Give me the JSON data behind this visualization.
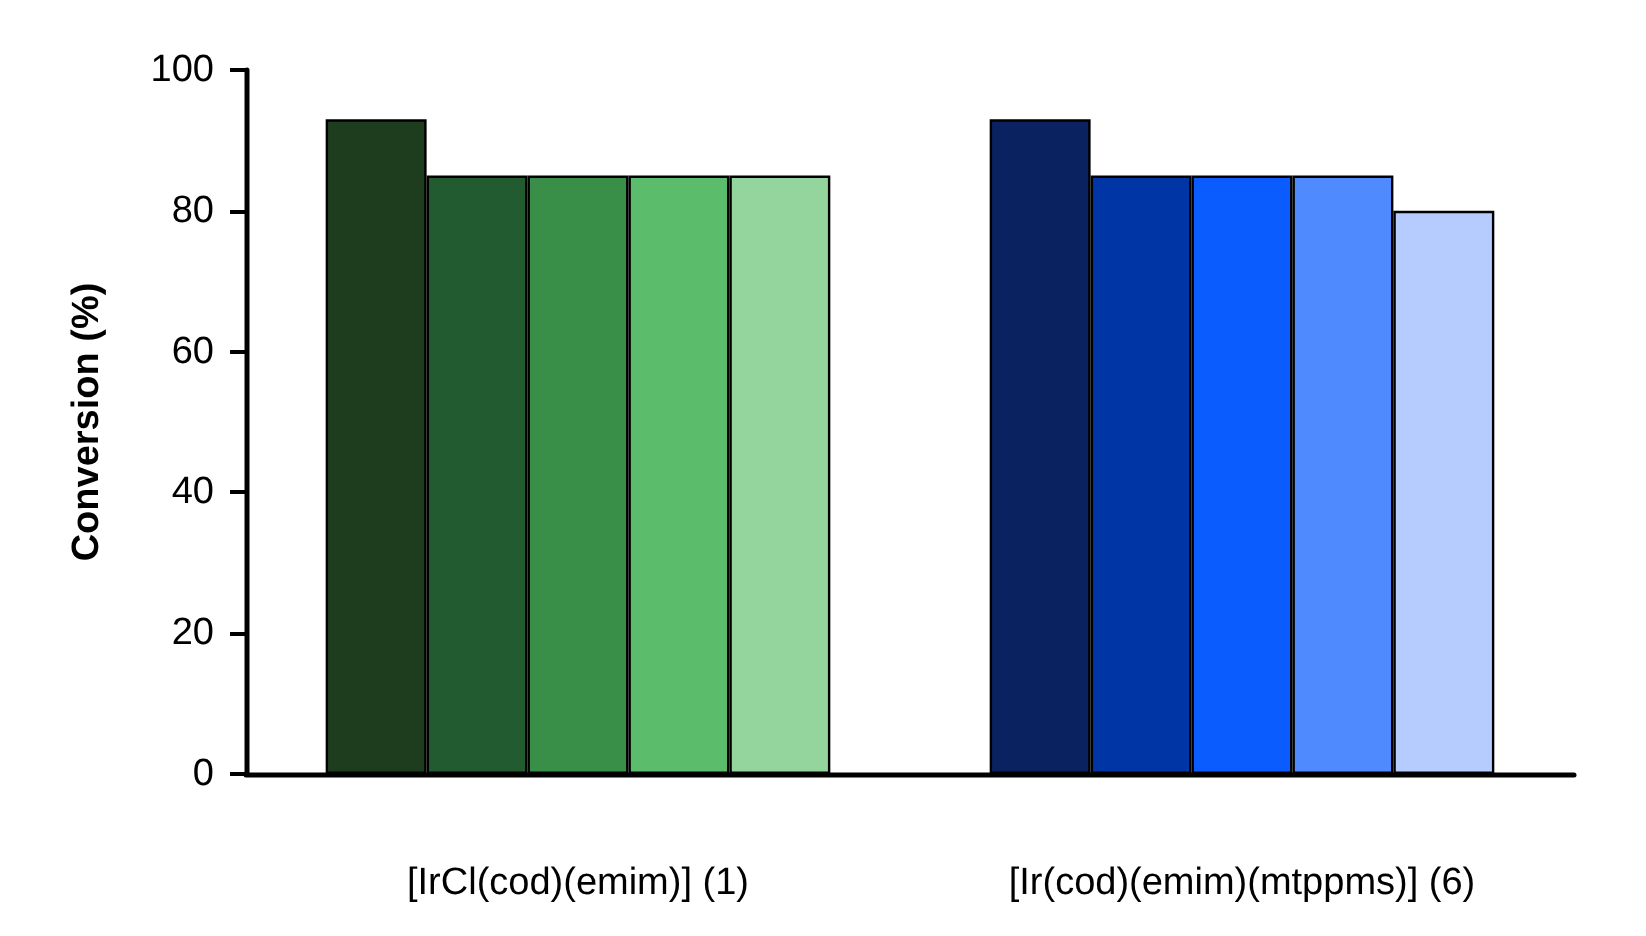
{
  "chart_data": {
    "type": "bar",
    "ylabel": "Conversion (%)",
    "categories": [
      "[IrCl(cod)(emim)] (1)",
      "[Ir(cod)(emim)(mtppms)] (6)"
    ],
    "series": [
      {
        "colors": [
          "#1e3d1e",
          "#0a2260"
        ],
        "values": [
          93,
          93
        ]
      },
      {
        "colors": [
          "#235b30",
          "#0035a5"
        ],
        "values": [
          85,
          85
        ]
      },
      {
        "colors": [
          "#3a8f48",
          "#0b5cff"
        ],
        "values": [
          85,
          85
        ]
      },
      {
        "colors": [
          "#5bbd6b",
          "#4f8bff"
        ],
        "values": [
          85,
          85
        ]
      },
      {
        "colors": [
          "#93d59d",
          "#b7ccfe"
        ],
        "values": [
          85,
          80
        ]
      }
    ],
    "ylim": [
      0,
      100
    ],
    "yticks": [
      0,
      20,
      40,
      60,
      80,
      100
    ],
    "grid": false
  }
}
